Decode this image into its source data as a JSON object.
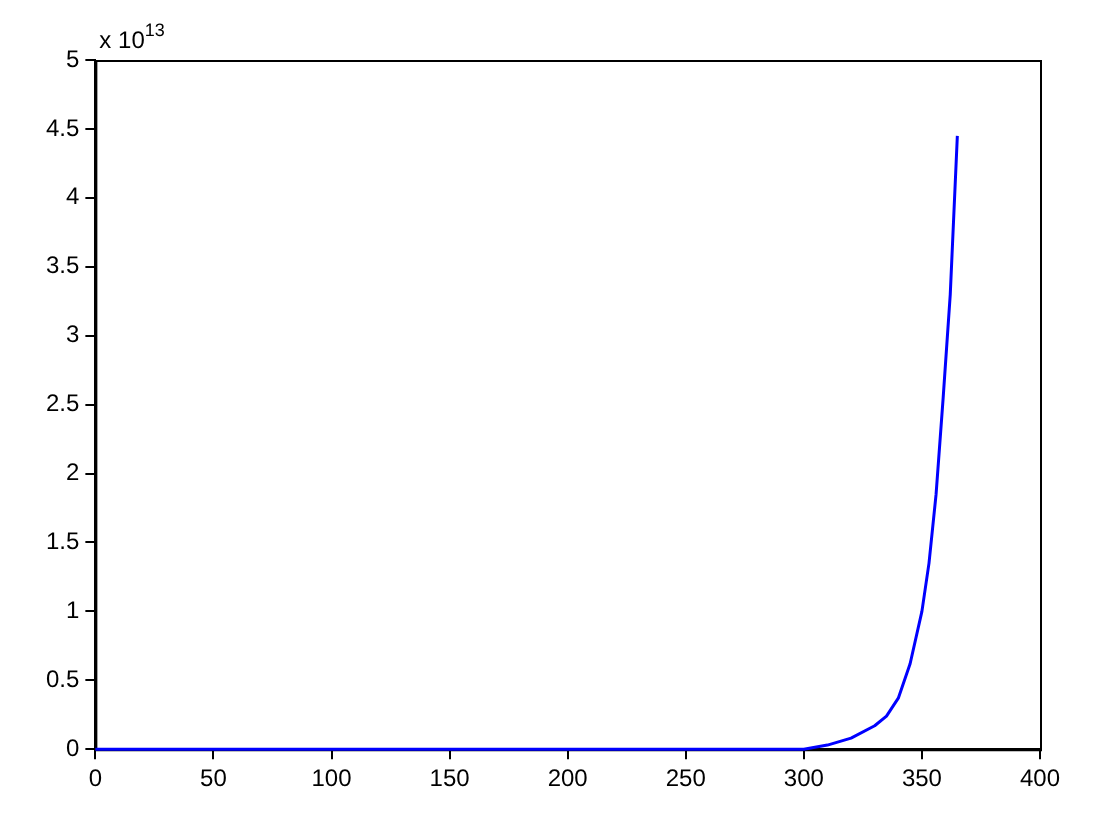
{
  "chart_data": {
    "type": "line",
    "x": [
      0,
      50,
      100,
      150,
      200,
      250,
      300,
      310,
      320,
      330,
      335,
      340,
      345,
      350,
      353,
      356,
      359,
      362,
      365
    ],
    "values": [
      0,
      0,
      0,
      0,
      0,
      0,
      0,
      0.03,
      0.08,
      0.17,
      0.24,
      0.37,
      0.62,
      1.0,
      1.35,
      1.85,
      2.55,
      3.3,
      4.45
    ],
    "color": "#0000ff",
    "xlim": [
      0,
      400
    ],
    "xticks": [
      0,
      50,
      100,
      150,
      200,
      250,
      300,
      350,
      400
    ],
    "ylim": [
      0,
      5
    ],
    "yticks": [
      0,
      0.5,
      1,
      1.5,
      2,
      2.5,
      3,
      3.5,
      4,
      4.5,
      5
    ],
    "grid": false,
    "legend": false,
    "marker": "none",
    "line_style": "solid",
    "annotations": [
      "x 10$^{13}$"
    ]
  }
}
